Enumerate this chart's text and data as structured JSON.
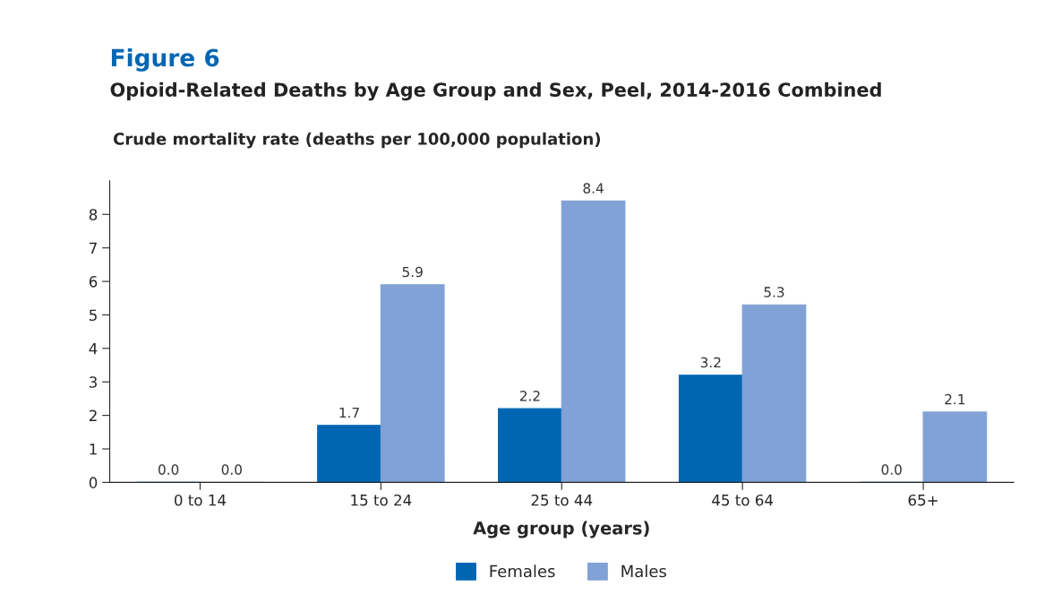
{
  "chart_data": {
    "type": "bar",
    "title": "Figure 6",
    "subtitle": "Opioid-Related Deaths by Age Group and Sex, Peel, 2014-2016 Combined",
    "ylabel": "Crude mortality rate (deaths per 100,000 population)",
    "xlabel": "Age group (years)",
    "categories": [
      "0 to 14",
      "15 to 24",
      "25 to 44",
      "45 to 64",
      "65+"
    ],
    "series": [
      {
        "name": "Females",
        "color": "#0066b3",
        "values": [
          0,
          1.7,
          2.2,
          3.2,
          0
        ],
        "value_labels": [
          "0.0",
          "1.7",
          "2.2",
          "3.2",
          "0.0"
        ]
      },
      {
        "name": "Males",
        "color": "#81a2d6",
        "values": [
          0,
          5.9,
          8.4,
          5.3,
          2.1
        ],
        "value_labels": [
          "0.0",
          "5.9",
          "8.4",
          "5.3",
          "2.1"
        ]
      }
    ],
    "ylim": [
      0,
      9
    ],
    "yticks": [
      0,
      1,
      2,
      3,
      4,
      5,
      6,
      7,
      8
    ],
    "legend": "bottom",
    "grid": false
  }
}
